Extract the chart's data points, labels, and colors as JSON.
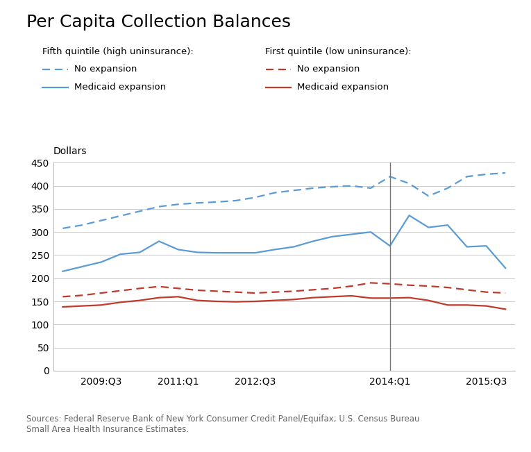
{
  "title": "Per Capita Collection Balances",
  "ylabel": "Dollars",
  "source_text": "Sources: Federal Reserve Bank of New York Consumer Credit Panel/Equifax; U.S. Census Bureau\nSmall Area Health Insurance Estimates.",
  "ylim": [
    0,
    450
  ],
  "yticks": [
    0,
    50,
    100,
    150,
    200,
    250,
    300,
    350,
    400,
    450
  ],
  "vline_x": 17,
  "legend_left_title": "Fifth quintile (high uninsurance):",
  "legend_right_title": "First quintile (low uninsurance):",
  "x_tick_labels": [
    "2009:Q3",
    "2011:Q1",
    "2012:Q3",
    "2014:Q1",
    "2015:Q3"
  ],
  "x_tick_positions": [
    2,
    6,
    10,
    17,
    22
  ],
  "series": {
    "blue_dashed": [
      308,
      315,
      325,
      335,
      345,
      355,
      360,
      363,
      365,
      368,
      375,
      385,
      390,
      395,
      398,
      400,
      395,
      420,
      405,
      378,
      395,
      420,
      425,
      428
    ],
    "blue_solid": [
      215,
      225,
      235,
      252,
      256,
      280,
      262,
      256,
      255,
      255,
      255,
      262,
      268,
      280,
      290,
      295,
      300,
      270,
      336,
      310,
      315,
      268,
      270,
      222
    ],
    "red_dashed": [
      160,
      163,
      168,
      173,
      178,
      182,
      178,
      174,
      172,
      170,
      168,
      170,
      172,
      175,
      178,
      183,
      190,
      188,
      185,
      183,
      180,
      175,
      170,
      168
    ],
    "red_solid": [
      138,
      140,
      142,
      148,
      152,
      158,
      160,
      152,
      150,
      149,
      150,
      152,
      154,
      158,
      160,
      162,
      157,
      157,
      158,
      152,
      142,
      142,
      140,
      133
    ]
  },
  "blue_color": "#5B9BD5",
  "red_color": "#C0392B",
  "bg_color": "#FFFFFF",
  "grid_color": "#CCCCCC",
  "vline_color": "#777777",
  "title_fontsize": 18,
  "legend_title_fontsize": 9.5,
  "legend_item_fontsize": 9.5,
  "axis_label_fontsize": 10,
  "tick_fontsize": 10,
  "source_fontsize": 8.5
}
